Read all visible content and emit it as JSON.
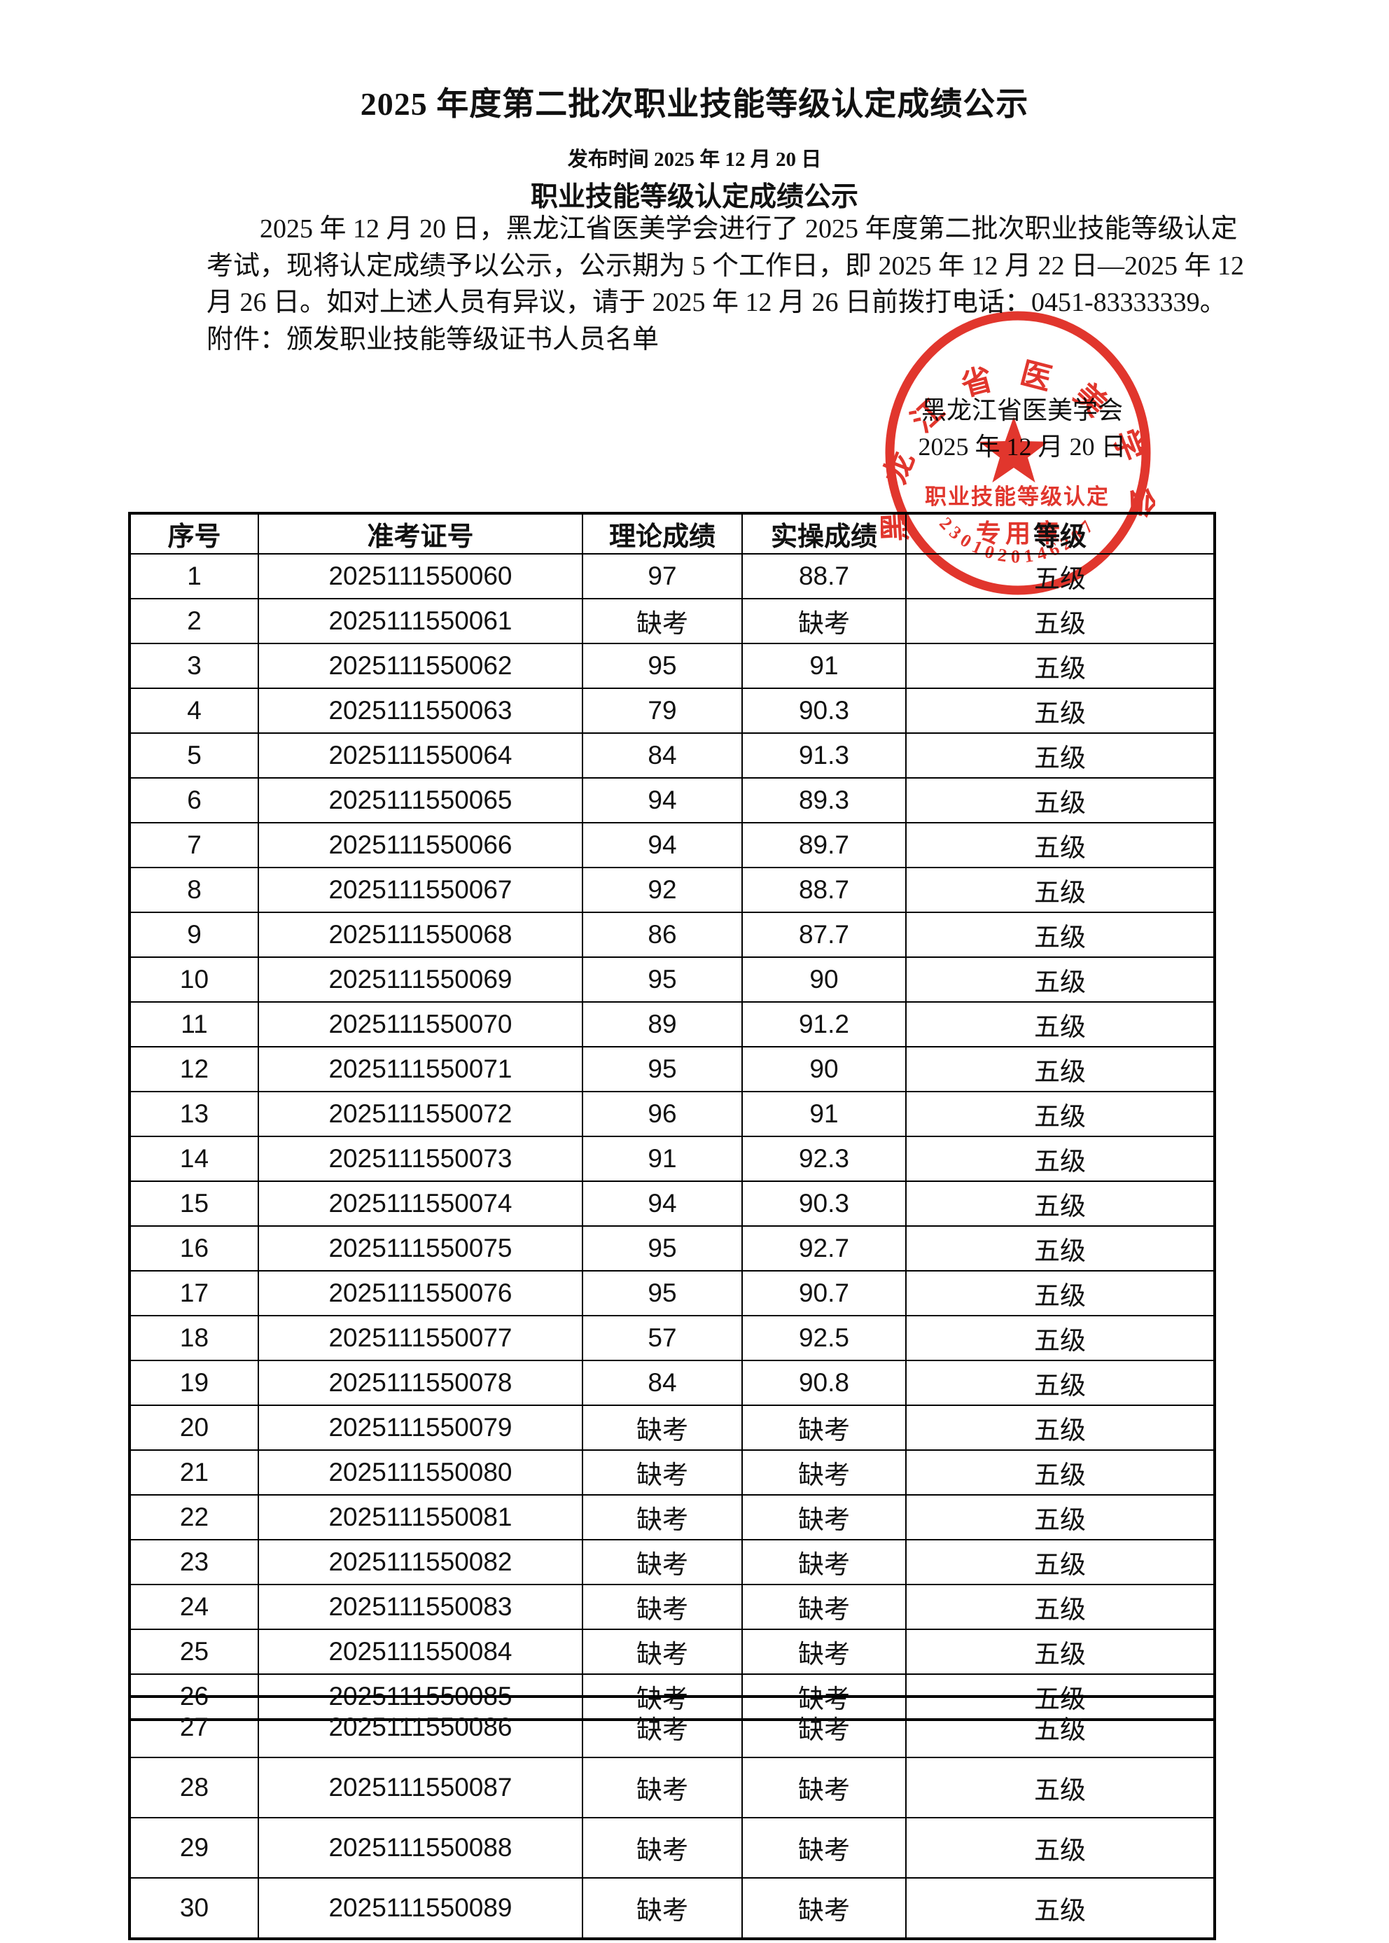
{
  "document": {
    "title": "2025 年度第二批次职业技能等级认定成绩公示",
    "publish_line": "发布时间 2025 年 12 月 20 日",
    "subtitle": "职业技能等级认定成绩公示",
    "body_lines": [
      "2025 年 12 月 20 日，黑龙江省医美学会进行了 2025 年度第二批次职业技能等级认定",
      "考试，现将认定成绩予以公示，公示期为 5 个工作日，即 2025 年 12 月 22 日—2025 年 12",
      "月 26 日。如对上述人员有异议，请于 2025 年 12 月 26 日前拨打电话：0451-83333339。"
    ],
    "attachment_line": "附件：颁发职业技能等级证书人员名单",
    "signature": {
      "org": "黑龙江省医美学会",
      "date": "2025 年 12 月 20 日"
    }
  },
  "seal": {
    "arc_text": "黑龙江省医美学会",
    "center_line1": "职业技能等级认定",
    "center_line2": "专用章",
    "serial_number": "2301020146207",
    "star_icon": "red-star",
    "color": "#df241b"
  },
  "table": {
    "headers": [
      "序号",
      "准考证号",
      "理论成绩",
      "实操成绩",
      "等级"
    ],
    "page_break_after_row": 26,
    "rows": [
      [
        "1",
        "2025111550060",
        "97",
        "88.7",
        "五级"
      ],
      [
        "2",
        "2025111550061",
        "缺考",
        "缺考",
        "五级"
      ],
      [
        "3",
        "2025111550062",
        "95",
        "91",
        "五级"
      ],
      [
        "4",
        "2025111550063",
        "79",
        "90.3",
        "五级"
      ],
      [
        "5",
        "2025111550064",
        "84",
        "91.3",
        "五级"
      ],
      [
        "6",
        "2025111550065",
        "94",
        "89.3",
        "五级"
      ],
      [
        "7",
        "2025111550066",
        "94",
        "89.7",
        "五级"
      ],
      [
        "8",
        "2025111550067",
        "92",
        "88.7",
        "五级"
      ],
      [
        "9",
        "2025111550068",
        "86",
        "87.7",
        "五级"
      ],
      [
        "10",
        "2025111550069",
        "95",
        "90",
        "五级"
      ],
      [
        "11",
        "2025111550070",
        "89",
        "91.2",
        "五级"
      ],
      [
        "12",
        "2025111550071",
        "95",
        "90",
        "五级"
      ],
      [
        "13",
        "2025111550072",
        "96",
        "91",
        "五级"
      ],
      [
        "14",
        "2025111550073",
        "91",
        "92.3",
        "五级"
      ],
      [
        "15",
        "2025111550074",
        "94",
        "90.3",
        "五级"
      ],
      [
        "16",
        "2025111550075",
        "95",
        "92.7",
        "五级"
      ],
      [
        "17",
        "2025111550076",
        "95",
        "90.7",
        "五级"
      ],
      [
        "18",
        "2025111550077",
        "57",
        "92.5",
        "五级"
      ],
      [
        "19",
        "2025111550078",
        "84",
        "90.8",
        "五级"
      ],
      [
        "20",
        "2025111550079",
        "缺考",
        "缺考",
        "五级"
      ],
      [
        "21",
        "2025111550080",
        "缺考",
        "缺考",
        "五级"
      ],
      [
        "22",
        "2025111550081",
        "缺考",
        "缺考",
        "五级"
      ],
      [
        "23",
        "2025111550082",
        "缺考",
        "缺考",
        "五级"
      ],
      [
        "24",
        "2025111550083",
        "缺考",
        "缺考",
        "五级"
      ],
      [
        "25",
        "2025111550084",
        "缺考",
        "缺考",
        "五级"
      ],
      [
        "26",
        "2025111550085",
        "缺考",
        "缺考",
        "五级"
      ],
      [
        "27",
        "2025111550086",
        "缺考",
        "缺考",
        "五级"
      ],
      [
        "28",
        "2025111550087",
        "缺考",
        "缺考",
        "五级"
      ],
      [
        "29",
        "2025111550088",
        "缺考",
        "缺考",
        "五级"
      ],
      [
        "30",
        "2025111550089",
        "缺考",
        "缺考",
        "五级"
      ]
    ]
  },
  "colors": {
    "page_bg": "#ffffff",
    "text": "#111111",
    "table_border": "#000000",
    "seal_red": "#df241b"
  }
}
